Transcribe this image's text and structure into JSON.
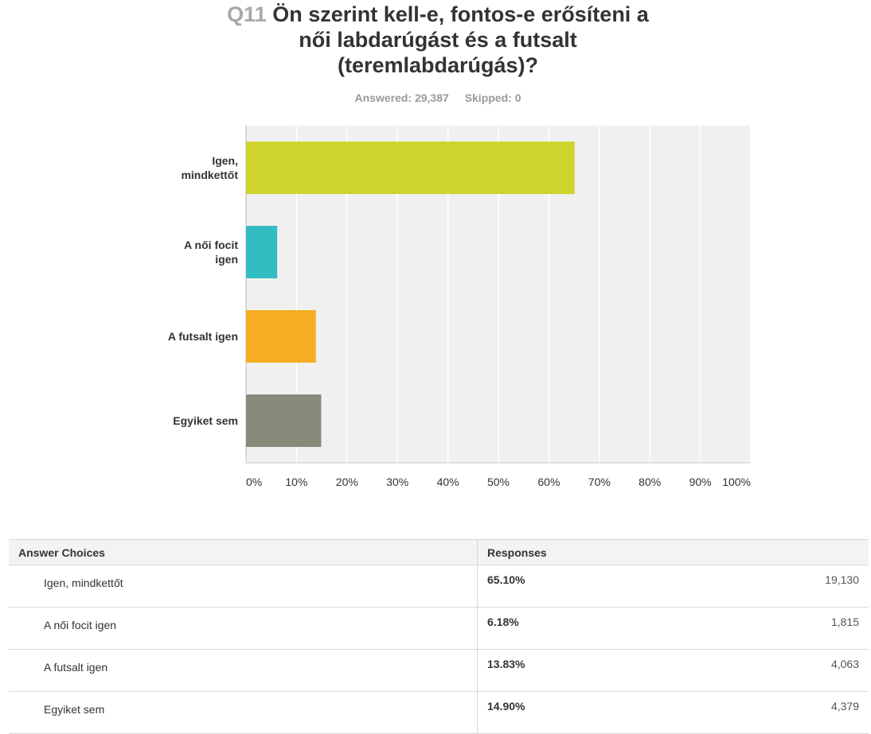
{
  "question": {
    "number": "Q11",
    "title_lines": [
      "Ön szerint kell-e, fontos-e erősíteni a",
      "női labdarúgást és a futsalt",
      "(teremlabdarúgás)?"
    ],
    "answered": "Answered: 29,387",
    "skipped": "Skipped: 0"
  },
  "chart_data": {
    "type": "bar",
    "orientation": "horizontal",
    "categories": [
      [
        "Igen,",
        "mindkettőt"
      ],
      [
        "A női focit",
        "igen"
      ],
      [
        "A futsalt igen"
      ],
      [
        "Egyiket sem"
      ]
    ],
    "values": [
      65.1,
      6.18,
      13.83,
      14.9
    ],
    "colors": [
      "#cdd42b",
      "#33bcc2",
      "#f5ae22",
      "#898a7a"
    ],
    "xlim": [
      0,
      100
    ],
    "xticks": [
      "0%",
      "10%",
      "20%",
      "30%",
      "40%",
      "50%",
      "60%",
      "70%",
      "80%",
      "90%",
      "100%"
    ],
    "grid": true,
    "background": "#f0f0f0"
  },
  "table": {
    "headers": [
      "Answer Choices",
      "Responses"
    ],
    "rows": [
      {
        "choice": "Igen, mindkettőt",
        "percent": "65.10%",
        "count": "19,130"
      },
      {
        "choice": "A női focit igen",
        "percent": "6.18%",
        "count": "1,815"
      },
      {
        "choice": "A futsalt igen",
        "percent": "13.83%",
        "count": "4,063"
      },
      {
        "choice": "Egyiket sem",
        "percent": "14.90%",
        "count": "4,379"
      }
    ]
  }
}
